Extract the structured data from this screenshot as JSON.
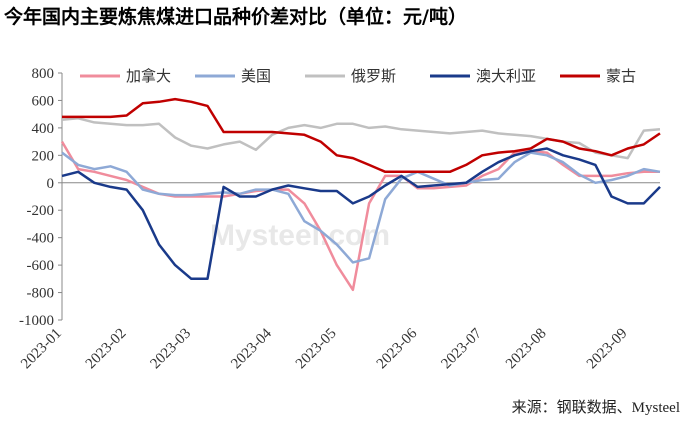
{
  "chart_data": {
    "type": "line",
    "title": "今年国内主要炼焦煤进口品种价差对比（单位：元/吨）",
    "source": "来源：钢联数据、Mysteel",
    "watermark": "Mysteel.com",
    "categories": [
      "2023-01",
      null,
      null,
      null,
      "2023-02",
      null,
      null,
      null,
      "2023-03",
      null,
      null,
      null,
      null,
      "2023-04",
      null,
      null,
      null,
      "2023-05",
      null,
      null,
      null,
      null,
      "2023-06",
      null,
      null,
      null,
      "2023-07",
      null,
      null,
      null,
      "2023-08",
      null,
      null,
      null,
      null,
      "2023-09",
      null,
      null
    ],
    "ylim": [
      -1000,
      800
    ],
    "yticks": [
      -1000,
      -800,
      -600,
      -400,
      -200,
      0,
      200,
      400,
      600,
      800
    ],
    "grid": false,
    "legend": "top",
    "series": [
      {
        "name": "加拿大",
        "color": "#f08c9c",
        "values": [
          300,
          100,
          80,
          50,
          20,
          -30,
          -80,
          -100,
          -100,
          -100,
          -100,
          -80,
          -60,
          -50,
          -50,
          -150,
          -350,
          -600,
          -780,
          -150,
          50,
          50,
          -40,
          -40,
          -30,
          -20,
          50,
          100,
          220,
          230,
          220,
          130,
          50,
          50,
          50,
          70,
          80,
          80
        ]
      },
      {
        "name": "美国",
        "color": "#8ea9d6",
        "values": [
          220,
          130,
          100,
          120,
          80,
          -50,
          -80,
          -90,
          -90,
          -80,
          -70,
          -80,
          -50,
          -50,
          -80,
          -280,
          -350,
          -450,
          -580,
          -550,
          -120,
          30,
          80,
          30,
          -20,
          0,
          20,
          30,
          150,
          220,
          200,
          150,
          60,
          0,
          20,
          50,
          100,
          80
        ]
      },
      {
        "name": "俄罗斯",
        "color": "#c0c0c0",
        "values": [
          460,
          470,
          440,
          430,
          420,
          420,
          430,
          330,
          270,
          250,
          280,
          300,
          240,
          350,
          400,
          420,
          400,
          430,
          430,
          400,
          410,
          390,
          380,
          370,
          360,
          370,
          380,
          360,
          350,
          340,
          320,
          300,
          290,
          220,
          200,
          180,
          380,
          390
        ]
      },
      {
        "name": "澳大利亚",
        "color": "#1a3a8a",
        "values": [
          50,
          80,
          0,
          -30,
          -50,
          -200,
          -450,
          -600,
          -700,
          -700,
          -30,
          -100,
          -100,
          -50,
          -20,
          -40,
          -60,
          -60,
          -150,
          -100,
          -20,
          50,
          -30,
          -20,
          -10,
          0,
          80,
          150,
          200,
          230,
          250,
          200,
          170,
          130,
          -100,
          -150,
          -150,
          -30
        ]
      },
      {
        "name": "蒙古",
        "color": "#c00000",
        "values": [
          480,
          480,
          480,
          480,
          490,
          580,
          590,
          610,
          590,
          560,
          370,
          370,
          370,
          370,
          360,
          350,
          300,
          200,
          180,
          130,
          80,
          80,
          80,
          80,
          80,
          130,
          200,
          220,
          230,
          250,
          320,
          300,
          250,
          230,
          200,
          250,
          280,
          360
        ]
      }
    ]
  }
}
